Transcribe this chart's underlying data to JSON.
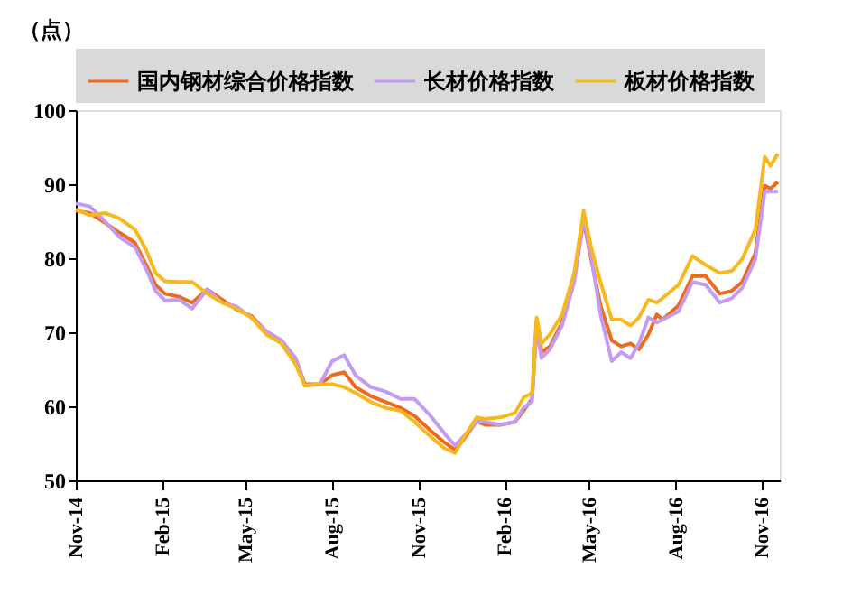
{
  "chart_data": {
    "type": "line",
    "ylabel": "（点）",
    "legend": "top",
    "grid": false,
    "x": [
      "2014-11-01",
      "2014-11-16",
      "2014-12-02",
      "2014-12-17",
      "2015-01-03",
      "2015-01-15",
      "2015-01-25",
      "2015-02-04",
      "2015-02-19",
      "2015-03-05",
      "2015-03-21",
      "2015-04-06",
      "2015-04-21",
      "2015-05-07",
      "2015-05-23",
      "2015-06-08",
      "2015-06-23",
      "2015-07-03",
      "2015-07-19",
      "2015-08-01",
      "2015-08-14",
      "2015-08-26",
      "2015-09-11",
      "2015-09-27",
      "2015-10-13",
      "2015-10-28",
      "2015-11-14",
      "2015-11-29",
      "2015-12-10",
      "2015-12-19",
      "2016-01-02",
      "2016-01-11",
      "2016-01-27",
      "2016-02-12",
      "2016-02-21",
      "2016-03-01",
      "2016-03-06",
      "2016-03-11",
      "2016-03-20",
      "2016-04-02",
      "2016-04-15",
      "2016-04-25",
      "2016-05-03",
      "2016-05-13",
      "2016-05-25",
      "2016-06-04",
      "2016-06-14",
      "2016-06-23",
      "2016-07-03",
      "2016-07-12",
      "2016-07-18",
      "2016-08-04",
      "2016-08-19",
      "2016-09-02",
      "2016-09-17",
      "2016-09-30",
      "2016-10-11",
      "2016-10-25",
      "2016-11-04",
      "2016-11-10",
      "2016-11-18"
    ],
    "series": [
      {
        "name": "国内钢材综合价格指数",
        "color": "#ee6a1c",
        "values": [
          86.4,
          86.1,
          84.8,
          83.5,
          82.1,
          79.1,
          76.4,
          75.2,
          74.8,
          74.0,
          75.8,
          74.4,
          73.1,
          72.2,
          70.1,
          68.9,
          66.5,
          63.0,
          63.0,
          64.2,
          64.6,
          62.6,
          61.4,
          60.6,
          59.8,
          58.7,
          56.7,
          55.1,
          54.1,
          55.5,
          58.0,
          57.5,
          57.5,
          57.9,
          59.4,
          61.0,
          71.7,
          67.3,
          68.1,
          71.3,
          77.6,
          85.0,
          79.9,
          73.6,
          68.9,
          68.1,
          68.5,
          67.7,
          69.7,
          72.4,
          71.7,
          73.6,
          77.6,
          77.6,
          75.2,
          75.6,
          76.8,
          80.7,
          89.8,
          89.4,
          90.3
        ]
      },
      {
        "name": "长材价格指数",
        "color": "#c39bf0",
        "values": [
          87.4,
          87.0,
          85.0,
          82.9,
          81.5,
          78.5,
          75.6,
          74.3,
          74.4,
          73.2,
          75.8,
          74.0,
          73.5,
          72.0,
          70.1,
          68.9,
          66.5,
          62.8,
          63.0,
          66.1,
          66.9,
          64.2,
          62.6,
          62.0,
          61.0,
          61.0,
          58.7,
          56.3,
          54.7,
          55.9,
          58.0,
          57.9,
          57.5,
          57.9,
          59.8,
          60.6,
          70.6,
          66.5,
          67.7,
          70.9,
          76.8,
          85.3,
          80.3,
          72.4,
          66.1,
          67.3,
          66.5,
          68.5,
          72.0,
          71.3,
          71.7,
          72.8,
          76.8,
          76.4,
          74.0,
          74.6,
          76.0,
          79.9,
          89.0,
          89.0,
          89.0
        ]
      },
      {
        "name": "板材价格指数",
        "color": "#f7b81e",
        "values": [
          86.6,
          85.8,
          86.1,
          85.4,
          83.9,
          81.1,
          78.0,
          76.9,
          76.8,
          76.8,
          75.2,
          74.0,
          73.2,
          72.0,
          69.7,
          68.5,
          65.7,
          62.8,
          63.0,
          63.0,
          62.6,
          61.8,
          60.6,
          59.8,
          59.4,
          57.9,
          55.9,
          54.3,
          53.7,
          55.7,
          58.5,
          58.3,
          58.5,
          59.1,
          61.2,
          61.8,
          72.0,
          68.5,
          69.7,
          72.4,
          78.0,
          86.4,
          81.5,
          76.8,
          71.7,
          71.7,
          70.9,
          72.0,
          74.4,
          74.0,
          74.6,
          76.4,
          80.3,
          79.1,
          78.0,
          78.3,
          79.9,
          83.9,
          93.7,
          92.5,
          94.1
        ]
      }
    ],
    "xlim": [
      "2014-11-01",
      "2016-11-20"
    ],
    "xticks": [
      {
        "value": "2014-11-01",
        "label": "Nov-14"
      },
      {
        "value": "2015-02-01",
        "label": "Feb-15"
      },
      {
        "value": "2015-05-01",
        "label": "May-15"
      },
      {
        "value": "2015-08-01",
        "label": "Aug-15"
      },
      {
        "value": "2015-11-01",
        "label": "Nov-15"
      },
      {
        "value": "2016-02-01",
        "label": "Feb-16"
      },
      {
        "value": "2016-05-01",
        "label": "May-16"
      },
      {
        "value": "2016-08-01",
        "label": "Aug-16"
      },
      {
        "value": "2016-11-01",
        "label": "Nov-16"
      }
    ],
    "ylim": [
      50,
      100
    ],
    "yticks": [
      50,
      60,
      70,
      80,
      90,
      100
    ]
  }
}
